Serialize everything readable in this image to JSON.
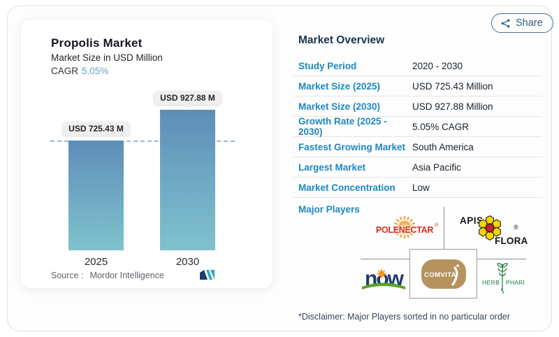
{
  "chart_panel": {
    "title": "Propolis Market",
    "subtitle": "Market Size in USD Million",
    "cagr_label": "CAGR",
    "cagr_value": "5.05%",
    "source_label": "Source :",
    "source_value": "Mordor Intelligence"
  },
  "chart_data": {
    "type": "bar",
    "title": "Propolis Market",
    "subtitle": "Market Size in USD Million",
    "unit": "USD Million",
    "categories": [
      "2025",
      "2030"
    ],
    "values": [
      725.43,
      927.88
    ],
    "value_labels": [
      "USD 725.43 M",
      "USD 927.88 M"
    ],
    "cagr": "5.05%",
    "ylim": [
      0,
      1000
    ],
    "grid": false,
    "legend": "none",
    "reference_line": "dashed horizontal line at 2025 value (725.43)",
    "bar_gradient_top": "#5d8db8",
    "bar_gradient_bottom": "#7fc2cd"
  },
  "share_button": {
    "label": "Share"
  },
  "overview": {
    "heading": "Market Overview",
    "rows": [
      {
        "label": "Study Period",
        "value": "2020 - 2030"
      },
      {
        "label": "Market Size (2025)",
        "value": "USD 725.43 Million"
      },
      {
        "label": "Market Size (2030)",
        "value": "USD 927.88 Million"
      },
      {
        "label": "Growth Rate (2025 - 2030)",
        "value": "5.05% CAGR"
      },
      {
        "label": "Fastest Growing Market",
        "value": "South America"
      },
      {
        "label": "Largest Market",
        "value": "Asia Pacific"
      },
      {
        "label": "Market Concentration",
        "value": "Low"
      }
    ],
    "major_players_label": "Major Players",
    "players": {
      "polenectar": {
        "name": "POLENECTAR",
        "reg": "®"
      },
      "apisflora": {
        "apis": "APIS",
        "flora": "FLORA",
        "reg": "®"
      },
      "now": {
        "name": "now"
      },
      "comvita": {
        "name": "COMVITA"
      },
      "herbpharm": {
        "herb": "HERB",
        "pharm": "PHARM"
      }
    },
    "disclaimer": "*Disclaimer: Major Players sorted in no particular order"
  },
  "colors": {
    "accent_blue": "#1d87c3",
    "heading_navy": "#17344f",
    "cagr_blue": "#64a1c9",
    "share_blue": "#335f88",
    "polenectar_red": "#d2301f",
    "apisflora_yellow": "#f7d400",
    "apisflora_red": "#cc1f2d",
    "now_navy": "#1d3c6f",
    "now_green": "#58a321",
    "now_orange": "#f7941d",
    "comvita_gold": "#b6935e",
    "herbpharm_green": "#1c7a3a",
    "mordor_navy": "#1c3e6e",
    "mordor_teal": "#2fa8c0"
  }
}
